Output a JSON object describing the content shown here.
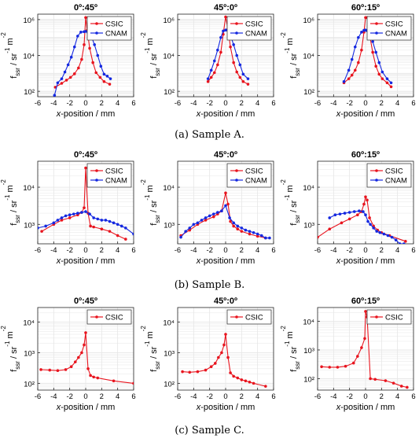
{
  "colors": {
    "csic": "#e8141e",
    "cnam": "#1428e0",
    "grid": "#e6e6e6",
    "axis": "#262626"
  },
  "captions": [
    "(a) Sample A.",
    "(b) Sample B.",
    "(c) Sample C."
  ],
  "chart_data": [
    {
      "type": "line",
      "title": "0º:45º",
      "row": 0,
      "col": 0,
      "xlabel": "x-position / mm",
      "ylabel": "f_ssr / sr^-1 m^-2",
      "xlim": [
        -6,
        6
      ],
      "xticks": [
        -6,
        -4,
        -2,
        0,
        2,
        4,
        6
      ],
      "yscale": "log",
      "ylim": [
        50,
        2000000
      ],
      "yticks": [
        100,
        10000,
        1000000
      ],
      "yticklabels": [
        "10²",
        "10⁴",
        "10⁶"
      ],
      "grid": true,
      "legend": "top-right",
      "series": [
        {
          "name": "CSIC",
          "color": "#e8141e",
          "x": [
            -3.8,
            -3,
            -2.4,
            -1.9,
            -1.4,
            -0.9,
            -0.5,
            -0.2,
            0,
            0.2,
            0.5,
            0.9,
            1.3,
            1.8,
            2.3,
            3
          ],
          "y": [
            170,
            280,
            420,
            600,
            950,
            2000,
            6000,
            40000,
            1300000,
            250000,
            25000,
            4000,
            1100,
            600,
            350,
            250
          ]
        },
        {
          "name": "CNAM",
          "color": "#1428e0",
          "x": [
            -3.9,
            -3.5,
            -3,
            -2.6,
            -2.2,
            -1.8,
            -1.4,
            -1,
            -0.6,
            -0.2,
            0,
            0.3,
            0.7,
            1.1,
            1.5,
            1.9,
            2.3,
            2.7,
            3.1
          ],
          "y": [
            60,
            300,
            500,
            1200,
            3000,
            8000,
            30000,
            120000,
            200000,
            210000,
            220000,
            190000,
            120000,
            40000,
            10000,
            2500,
            900,
            700,
            500
          ]
        }
      ]
    },
    {
      "type": "line",
      "title": "45º:0º",
      "row": 0,
      "col": 1,
      "xlabel": "x-position / mm",
      "ylabel": "f_ssr / sr^-1 m^-2",
      "xlim": [
        -6,
        6
      ],
      "xticks": [
        -6,
        -4,
        -2,
        0,
        2,
        4,
        6
      ],
      "yscale": "log",
      "ylim": [
        50,
        2000000
      ],
      "yticks": [
        100,
        10000,
        1000000
      ],
      "yticklabels": [
        "10²",
        "10⁴",
        "10⁶"
      ],
      "grid": true,
      "legend": "top-right",
      "series": [
        {
          "name": "CSIC",
          "color": "#e8141e",
          "x": [
            -2.2,
            -1.8,
            -1.4,
            -1,
            -0.6,
            -0.3,
            0,
            0.3,
            0.6,
            1,
            1.4,
            1.8,
            2.2,
            2.8
          ],
          "y": [
            350,
            600,
            1100,
            3000,
            15000,
            150000,
            1400000,
            300000,
            30000,
            4000,
            1200,
            600,
            350,
            250
          ]
        },
        {
          "name": "CNAM",
          "color": "#1428e0",
          "x": [
            -2.2,
            -1.8,
            -1.4,
            -1,
            -0.6,
            -0.3,
            0,
            0.3,
            0.6,
            1,
            1.4,
            1.8,
            2.2,
            2.8
          ],
          "y": [
            500,
            1500,
            5000,
            20000,
            100000,
            230000,
            260000,
            250000,
            130000,
            40000,
            10000,
            3000,
            900,
            500
          ]
        }
      ]
    },
    {
      "type": "line",
      "title": "60º:15º",
      "row": 0,
      "col": 2,
      "xlabel": "x-position / mm",
      "ylabel": "f_ssr / sr^-1 m^-2",
      "xlim": [
        -6,
        6
      ],
      "xticks": [
        -6,
        -4,
        -2,
        0,
        2,
        4,
        6
      ],
      "yscale": "log",
      "ylim": [
        50,
        2000000
      ],
      "yticks": [
        100,
        10000,
        1000000
      ],
      "yticklabels": [
        "10²",
        "10⁴",
        "10⁶"
      ],
      "grid": true,
      "legend": "top-right",
      "series": [
        {
          "name": "CSIC",
          "color": "#e8141e",
          "x": [
            -2.7,
            -2.1,
            -1.7,
            -1.3,
            -0.9,
            -0.5,
            -0.2,
            0,
            0.2,
            0.5,
            0.9,
            1.3,
            1.7,
            2.1,
            2.7,
            3.2
          ],
          "y": [
            300,
            500,
            800,
            1500,
            4000,
            20000,
            200000,
            1300000,
            1300000,
            150000,
            15000,
            2500,
            900,
            500,
            300,
            180
          ]
        },
        {
          "name": "CNAM",
          "color": "#1428e0",
          "x": [
            -2.7,
            -2.1,
            -1.7,
            -1.3,
            -0.9,
            -0.5,
            -0.2,
            0,
            0.2,
            0.5,
            0.9,
            1.3,
            1.7,
            2.1,
            2.7,
            3.2
          ],
          "y": [
            350,
            1500,
            6000,
            30000,
            100000,
            200000,
            250000,
            260000,
            240000,
            150000,
            60000,
            15000,
            4000,
            1200,
            500,
            300
          ]
        }
      ]
    },
    {
      "type": "line",
      "title": "0º:45º",
      "row": 1,
      "col": 0,
      "xlabel": "x-position / mm",
      "ylabel": "f_ssr / sr^-1 m^-2",
      "xlim": [
        -6,
        6
      ],
      "xticks": [
        -6,
        -4,
        -2,
        0,
        2,
        4,
        6
      ],
      "yscale": "log",
      "ylim": [
        300,
        50000
      ],
      "yticks": [
        1000,
        10000
      ],
      "yticklabels": [
        "10³",
        "10⁴"
      ],
      "grid": true,
      "legend": "top-right",
      "series": [
        {
          "name": "CSIC",
          "color": "#e8141e",
          "x": [
            -5.5,
            -4,
            -3,
            -2,
            -1,
            -0.5,
            -0.2,
            0,
            0.3,
            0.6,
            1,
            2,
            3,
            4,
            5
          ],
          "y": [
            650,
            1000,
            1300,
            1500,
            1800,
            2100,
            2800,
            33000,
            2000,
            900,
            850,
            750,
            650,
            500,
            400
          ]
        },
        {
          "name": "CNAM",
          "color": "#1428e0",
          "x": [
            -6,
            -5,
            -4,
            -3.5,
            -3,
            -2.5,
            -2,
            -1.5,
            -1,
            -0.5,
            0,
            0.5,
            1,
            1.5,
            2,
            2.5,
            3,
            3.5,
            4,
            4.5,
            5,
            6
          ],
          "y": [
            800,
            900,
            1100,
            1300,
            1500,
            1700,
            1800,
            1900,
            2000,
            2100,
            2200,
            1900,
            1500,
            1400,
            1300,
            1300,
            1200,
            1100,
            1000,
            900,
            800,
            550
          ]
        }
      ]
    },
    {
      "type": "line",
      "title": "45º:0º",
      "row": 1,
      "col": 1,
      "xlabel": "x-position / mm",
      "ylabel": "f_ssr / sr^-1 m^-2",
      "xlim": [
        -6,
        6
      ],
      "xticks": [
        -6,
        -4,
        -2,
        0,
        2,
        4,
        6
      ],
      "yscale": "log",
      "ylim": [
        300,
        50000
      ],
      "yticks": [
        1000,
        10000
      ],
      "yticklabels": [
        "10³",
        "10⁴"
      ],
      "grid": true,
      "legend": "top-right",
      "series": [
        {
          "name": "CSIC",
          "color": "#e8141e",
          "x": [
            -5.6,
            -4.5,
            -3.5,
            -2.5,
            -1.5,
            -1,
            -0.5,
            0,
            0.3,
            0.6,
            1,
            1.5,
            2,
            3,
            4,
            5
          ],
          "y": [
            500,
            700,
            1000,
            1300,
            1600,
            1900,
            2300,
            7000,
            3500,
            1200,
            900,
            750,
            650,
            550,
            480,
            430
          ]
        },
        {
          "name": "CNAM",
          "color": "#1428e0",
          "x": [
            -5.6,
            -5,
            -4.5,
            -4,
            -3.5,
            -3,
            -2.5,
            -2,
            -1.5,
            -1,
            -0.5,
            0,
            0.5,
            1,
            1.5,
            2,
            2.5,
            3,
            3.5,
            4,
            4.5,
            5,
            5.5
          ],
          "y": [
            450,
            650,
            800,
            1000,
            1100,
            1300,
            1500,
            1700,
            1900,
            2100,
            2300,
            3200,
            1500,
            1100,
            900,
            800,
            700,
            650,
            600,
            550,
            500,
            430,
            430
          ]
        }
      ]
    },
    {
      "type": "line",
      "title": "60º:15º",
      "row": 1,
      "col": 2,
      "xlabel": "x-position / mm",
      "ylabel": "f_ssr / sr^-1 m^-2",
      "xlim": [
        -6,
        6
      ],
      "xticks": [
        -6,
        -4,
        -2,
        0,
        2,
        4,
        6
      ],
      "yscale": "log",
      "ylim": [
        300,
        50000
      ],
      "yticks": [
        1000,
        10000
      ],
      "yticklabels": [
        "10³",
        "10⁴"
      ],
      "grid": true,
      "legend": "top-right",
      "series": [
        {
          "name": "CSIC",
          "color": "#e8141e",
          "x": [
            -6,
            -4.5,
            -3,
            -2,
            -1,
            -0.5,
            -0.2,
            0,
            0.2,
            0.5,
            1,
            1.5,
            2,
            3,
            5
          ],
          "y": [
            450,
            750,
            1100,
            1400,
            1800,
            2200,
            3500,
            5500,
            4500,
            1500,
            900,
            700,
            600,
            500,
            350
          ]
        },
        {
          "name": "CNAM",
          "color": "#1428e0",
          "x": [
            -4.5,
            -3.8,
            -3.2,
            -2.6,
            -2,
            -1.4,
            -0.8,
            -0.3,
            0,
            0.3,
            0.6,
            1,
            1.4,
            1.8,
            2.3,
            2.8,
            3.3,
            3.8,
            4.3,
            4.8
          ],
          "y": [
            1500,
            1800,
            1900,
            2000,
            2100,
            2200,
            2300,
            2200,
            1800,
            1200,
            1000,
            800,
            650,
            600,
            550,
            500,
            450,
            380,
            300,
            300
          ]
        }
      ]
    },
    {
      "type": "line",
      "title": "0º:45º",
      "row": 2,
      "col": 0,
      "xlabel": "x-position / mm",
      "ylabel": "f_ssr / sr^-1 m^-2",
      "xlim": [
        -6,
        6
      ],
      "xticks": [
        -6,
        -4,
        -2,
        0,
        2,
        4,
        6
      ],
      "yscale": "log",
      "ylim": [
        60,
        30000
      ],
      "yticks": [
        100,
        1000,
        10000
      ],
      "yticklabels": [
        "10²",
        "10³",
        "10⁴"
      ],
      "grid": true,
      "legend": "top-right",
      "series": [
        {
          "name": "CSIC",
          "color": "#e8141e",
          "x": [
            -5.6,
            -4.5,
            -3.5,
            -2.5,
            -1.8,
            -1.3,
            -0.9,
            -0.5,
            -0.2,
            0,
            0.3,
            0.6,
            1,
            1.5,
            3.5,
            6
          ],
          "y": [
            280,
            270,
            260,
            280,
            350,
            500,
            700,
            1000,
            1800,
            4500,
            300,
            180,
            160,
            150,
            120,
            100
          ]
        }
      ]
    },
    {
      "type": "line",
      "title": "45º:0º",
      "row": 2,
      "col": 1,
      "xlabel": "x-position / mm",
      "ylabel": "f_ssr / sr^-1 m^-2",
      "xlim": [
        -6,
        6
      ],
      "xticks": [
        -6,
        -4,
        -2,
        0,
        2,
        4,
        6
      ],
      "yscale": "log",
      "ylim": [
        60,
        30000
      ],
      "yticks": [
        100,
        1000,
        10000
      ],
      "yticklabels": [
        "10²",
        "10³",
        "10⁴"
      ],
      "grid": true,
      "legend": "top-right",
      "series": [
        {
          "name": "CSIC",
          "color": "#e8141e",
          "x": [
            -5.4,
            -4.5,
            -3.5,
            -2.5,
            -1.8,
            -1.3,
            -0.9,
            -0.5,
            -0.2,
            0,
            0.3,
            0.6,
            1,
            1.5,
            2,
            2.5,
            3,
            3.5,
            5
          ],
          "y": [
            240,
            230,
            240,
            270,
            350,
            450,
            700,
            1000,
            1800,
            4000,
            700,
            220,
            170,
            150,
            130,
            120,
            110,
            100,
            80
          ]
        }
      ]
    },
    {
      "type": "line",
      "title": "60º:15º",
      "row": 2,
      "col": 2,
      "xlabel": "x-position / mm",
      "ylabel": "f_ssr / sr^-1 m^-2",
      "xlim": [
        -6,
        6
      ],
      "xticks": [
        -6,
        -4,
        -2,
        0,
        2,
        4,
        6
      ],
      "yscale": "log",
      "ylim": [
        40,
        30000
      ],
      "yticks": [
        100,
        1000,
        10000
      ],
      "yticklabels": [
        "10²",
        "10³",
        "10⁴"
      ],
      "grid": true,
      "legend": "top-right",
      "series": [
        {
          "name": "CSIC",
          "color": "#e8141e",
          "x": [
            -5.5,
            -4.5,
            -3.5,
            -2.5,
            -1.5,
            -1,
            -0.5,
            -0.1,
            0,
            0.2,
            0.6,
            1.2,
            2.5,
            3.5,
            4.5,
            5.2
          ],
          "y": [
            260,
            250,
            250,
            270,
            350,
            600,
            1200,
            2500,
            22000,
            14000,
            100,
            95,
            85,
            70,
            55,
            50
          ]
        }
      ]
    }
  ]
}
